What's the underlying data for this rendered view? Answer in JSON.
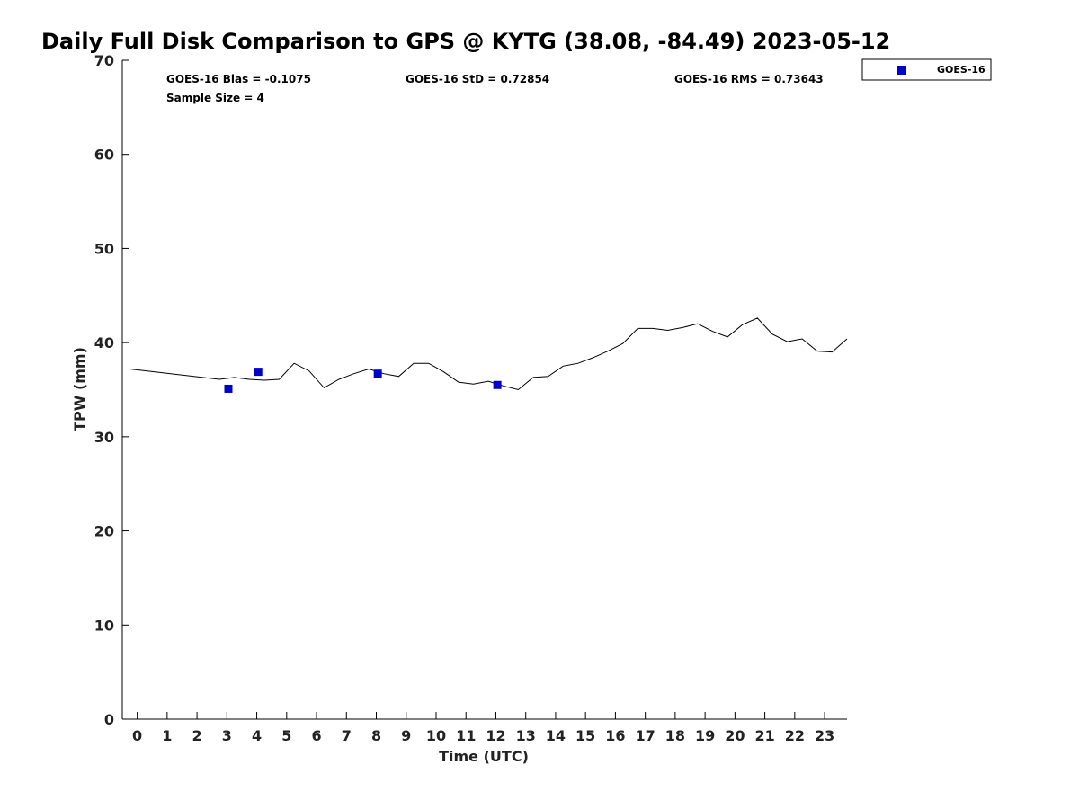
{
  "chart_data": {
    "type": "line",
    "title": "Daily Full Disk Comparison to GPS @ KYTG (38.08, -84.49) 2023-05-12",
    "xlabel": "Time (UTC)",
    "ylabel": "TPW (mm)",
    "xlim": [
      -0.5,
      23.75
    ],
    "ylim": [
      0,
      70
    ],
    "x_ticks": [
      0,
      1,
      2,
      3,
      4,
      5,
      6,
      7,
      8,
      9,
      10,
      11,
      12,
      13,
      14,
      15,
      16,
      17,
      18,
      19,
      20,
      21,
      22,
      23
    ],
    "y_ticks": [
      0,
      10,
      20,
      30,
      40,
      50,
      60,
      70
    ],
    "grid": false,
    "legend_position": "top-right",
    "stats": {
      "bias": "GOES-16 Bias = -0.1075",
      "std": "GOES-16 StD = 0.72854",
      "rms": "GOES-16 RMS = 0.73643",
      "sample": "Sample Size = 4"
    },
    "series": [
      {
        "type": "line",
        "color": "#000000",
        "x": [
          -0.25,
          2.75,
          3.25,
          3.75,
          4.25,
          4.75,
          5.25,
          5.75,
          6.25,
          6.75,
          7.25,
          7.75,
          8.25,
          8.75,
          9.25,
          9.75,
          10.25,
          10.75,
          11.25,
          11.75,
          12.25,
          12.75,
          13.25,
          13.75,
          14.25,
          14.75,
          15.25,
          15.75,
          16.25,
          16.75,
          17.25,
          17.75,
          18.25,
          18.75,
          19.25,
          19.75,
          20.25,
          20.75,
          21.25,
          21.75,
          22.25,
          22.75,
          23.25,
          23.75
        ],
        "y": [
          37.2,
          36.1,
          36.3,
          36.1,
          36.0,
          36.1,
          37.8,
          37.0,
          35.2,
          36.1,
          36.7,
          37.2,
          36.7,
          36.4,
          37.8,
          37.8,
          36.9,
          35.8,
          35.6,
          35.9,
          35.4,
          35.0,
          36.3,
          36.4,
          37.5,
          37.8,
          38.4,
          39.1,
          39.9,
          41.5,
          41.5,
          41.3,
          41.6,
          42.0,
          41.2,
          40.6,
          41.9,
          42.6,
          40.9,
          40.1,
          40.4,
          39.1,
          39.0,
          40.4
        ]
      },
      {
        "type": "scatter",
        "name": "GOES-16",
        "color": "#0000cc",
        "x": [
          3.05,
          4.05,
          8.05,
          12.05
        ],
        "y": [
          35.1,
          36.9,
          36.7,
          35.5
        ]
      }
    ]
  }
}
